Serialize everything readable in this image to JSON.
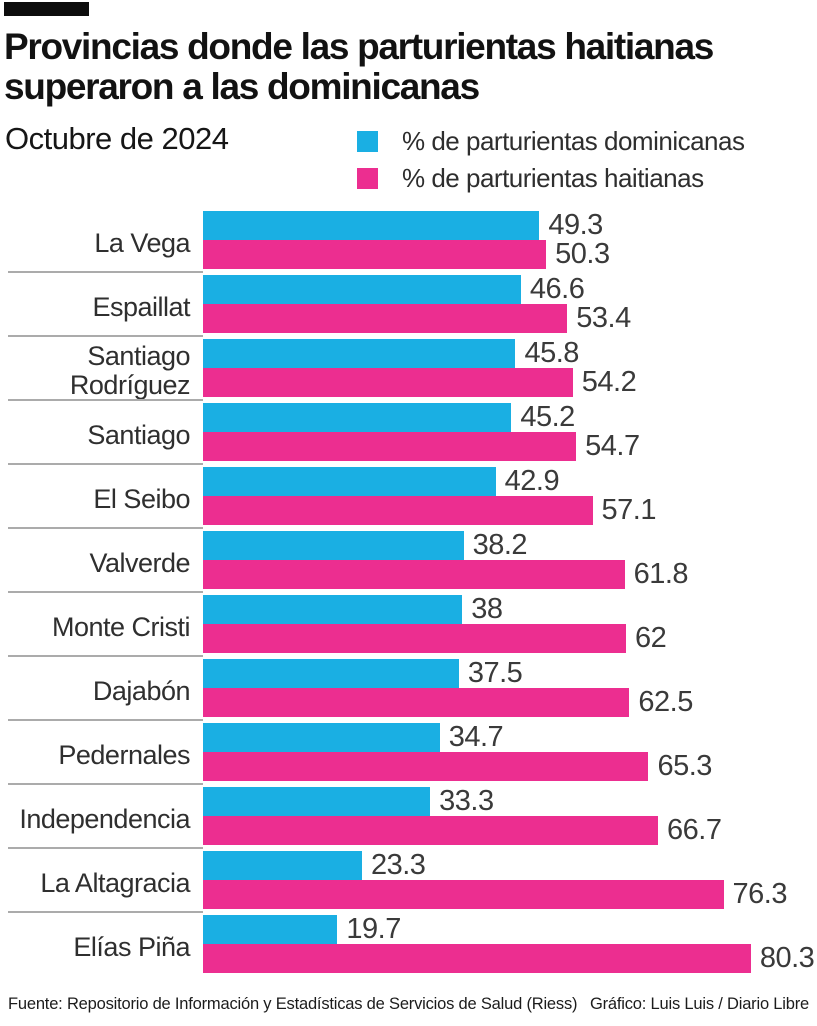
{
  "header": {
    "tag_color": "#0d0d0d"
  },
  "chart_data": {
    "type": "bar",
    "orientation": "horizontal",
    "title": "Provincias donde las parturientas haitianas superaron a las dominicanas",
    "subtitle": "Octubre de 2024",
    "categories": [
      "La Vega",
      "Espaillat",
      "Santiago Rodríguez",
      "Santiago",
      "El Seibo",
      "Valverde",
      "Monte Cristi",
      "Dajabón",
      "Pedernales",
      "Independencia",
      "La Altagracia",
      "Elías Piña"
    ],
    "series": [
      {
        "name": "% de parturientas dominicanas",
        "color": "#1aafe3",
        "values": [
          49.3,
          46.6,
          45.8,
          45.2,
          42.9,
          38.2,
          38,
          37.5,
          34.7,
          33.3,
          23.3,
          19.7
        ],
        "labels": [
          "49.3",
          "46.6",
          "45.8",
          "45.2",
          "42.9",
          "38.2",
          "38",
          "37.5",
          "34.7",
          "33.3",
          "23.3",
          "19.7"
        ]
      },
      {
        "name": "% de parturientas haitianas",
        "color": "#ec2e90",
        "values": [
          50.3,
          53.4,
          54.2,
          54.7,
          57.1,
          61.8,
          62,
          62.5,
          65.3,
          66.7,
          76.3,
          80.3
        ],
        "labels": [
          "50.3",
          "53.4",
          "54.2",
          "54.7",
          "57.1",
          "61.8",
          "62",
          "62.5",
          "65.3",
          "66.7",
          "76.3",
          "80.3"
        ]
      }
    ],
    "xlim": [
      0,
      90
    ],
    "grid": false,
    "value_labels": true,
    "legend_position": "top-right"
  },
  "footer": {
    "source": "Fuente: Repositorio de Información y Estadísticas de Servicios de Salud (Riess)",
    "credit": "Gráfico: Luis Luis / Diario Libre"
  }
}
